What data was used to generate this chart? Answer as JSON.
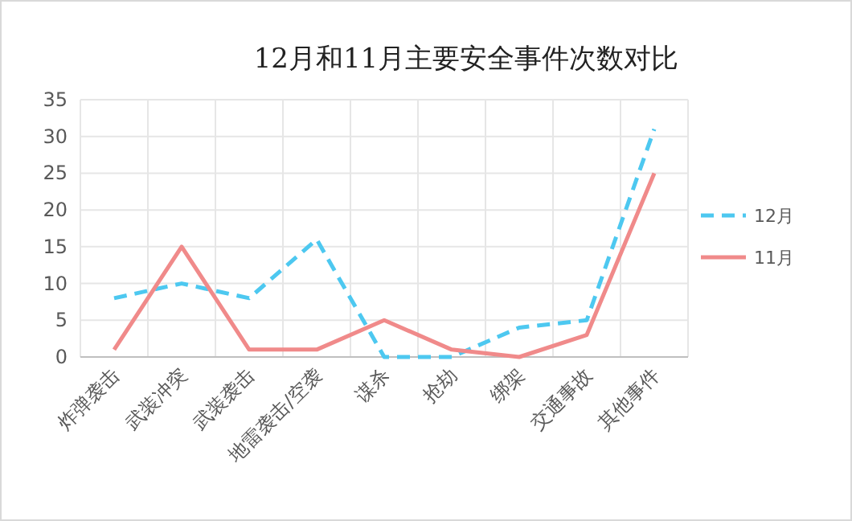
{
  "chart_data": {
    "type": "line",
    "title": "12月和11月主要安全事件次数对比",
    "categories": [
      "炸弹袭击",
      "武装冲突",
      "武装袭击",
      "地雷袭击/空袭",
      "谋杀",
      "抢劫",
      "绑架",
      "交通事故",
      "其他事件"
    ],
    "series": [
      {
        "name": "12月",
        "color": "#4dc8f0",
        "line_style": "dashed",
        "values": [
          8,
          10,
          8,
          16,
          0,
          0,
          4,
          5,
          31
        ]
      },
      {
        "name": "11月",
        "color": "#f08a8a",
        "line_style": "solid",
        "values": [
          1,
          15,
          1,
          1,
          5,
          1,
          0,
          3,
          25
        ]
      }
    ],
    "ylim": [
      0,
      35
    ],
    "yticks": [
      0,
      5,
      10,
      15,
      20,
      25,
      30,
      35
    ],
    "grid": true,
    "legend": "right"
  }
}
